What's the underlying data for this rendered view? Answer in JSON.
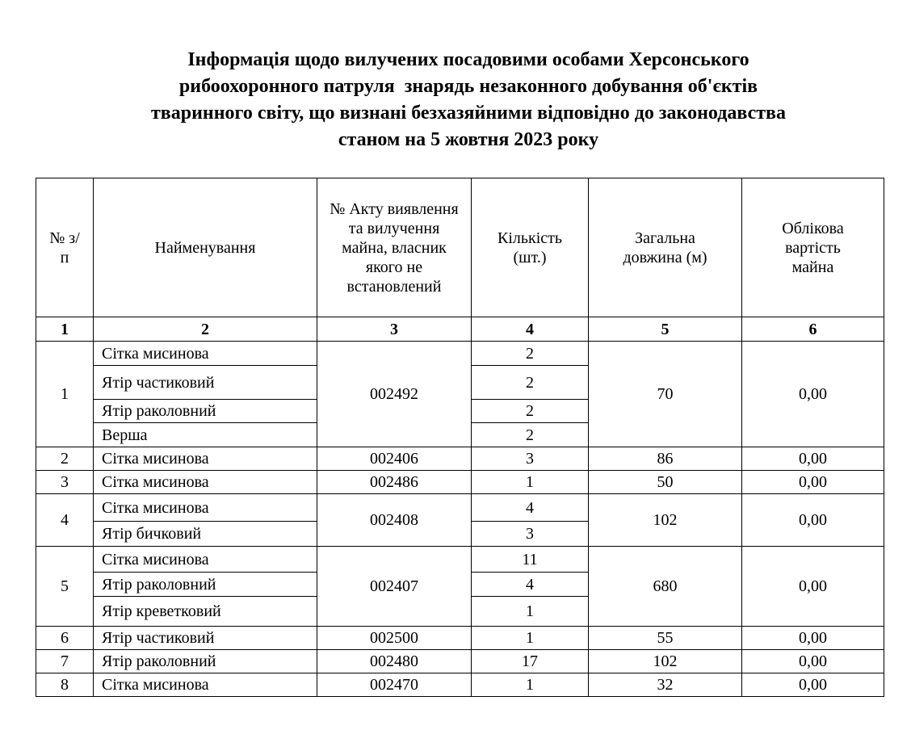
{
  "title": {
    "lines": [
      "Інформація щодо вилучених посадовими особами Херсонського",
      "рибоохоронного патруля  знарядь незаконного добування об'єктів",
      "тваринного світу, що визнані безхазяйними відповідно до законодавства",
      "станом на 5 жовтня 2023 року"
    ]
  },
  "table": {
    "headers": [
      "№ з/п",
      "Найменування",
      "№ Акту виявлення та вилучення майна, власник якого не встановлений",
      "Кількість (шт.)",
      "Загальна довжина (м)",
      "Облікова вартість майна"
    ],
    "column_numbers": [
      "1",
      "2",
      "3",
      "4",
      "5",
      "6"
    ],
    "rows": [
      {
        "no": "1",
        "act": "002492",
        "length": "70",
        "value": "0,00",
        "items": [
          {
            "name": "Сітка мисинова",
            "qty": "2"
          },
          {
            "name": "Ятір частиковий",
            "qty": "2"
          },
          {
            "name": "Ятір раколовний",
            "qty": "2"
          },
          {
            "name": "Верша",
            "qty": "2"
          }
        ]
      },
      {
        "no": "2",
        "act": "002406",
        "length": "86",
        "value": "0,00",
        "items": [
          {
            "name": "Сітка мисинова",
            "qty": "3"
          }
        ]
      },
      {
        "no": "3",
        "act": "002486",
        "length": "50",
        "value": "0,00",
        "items": [
          {
            "name": "Сітка мисинова",
            "qty": "1"
          }
        ]
      },
      {
        "no": "4",
        "act": "002408",
        "length": "102",
        "value": "0,00",
        "items": [
          {
            "name": "Сітка мисинова",
            "qty": "4"
          },
          {
            "name": "Ятір бичковий",
            "qty": "3"
          }
        ]
      },
      {
        "no": "5",
        "act": "002407",
        "length": "680",
        "value": "0,00",
        "items": [
          {
            "name": "Сітка мисинова",
            "qty": "11"
          },
          {
            "name": "Ятір раколовний",
            "qty": "4"
          },
          {
            "name": "Ятір креветковий",
            "qty": "1"
          }
        ]
      },
      {
        "no": "6",
        "act": "002500",
        "length": "55",
        "value": "0,00",
        "items": [
          {
            "name": "Ятір частиковий",
            "qty": "1"
          }
        ]
      },
      {
        "no": "7",
        "act": "002480",
        "length": "102",
        "value": "0,00",
        "items": [
          {
            "name": "Ятір раколовний",
            "qty": "17"
          }
        ]
      },
      {
        "no": "8",
        "act": "002470",
        "length": "32",
        "value": "0,00",
        "items": [
          {
            "name": "Сітка мисинова",
            "qty": "1"
          }
        ]
      }
    ]
  }
}
